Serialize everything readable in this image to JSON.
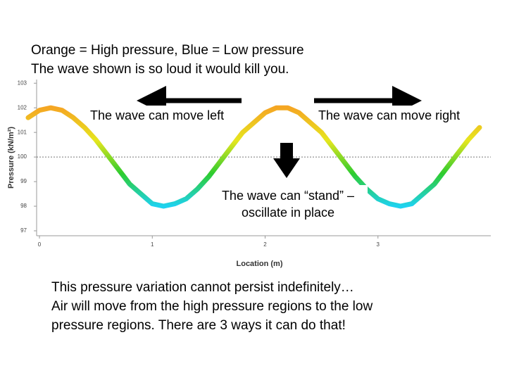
{
  "header": [
    "Orange = High pressure, Blue = Low pressure",
    "The wave shown is so loud it would kill you."
  ],
  "annotations": {
    "left": "The wave can move left",
    "right": "The wave can move right",
    "stand": [
      "The wave can “stand” –",
      "oscillate in place"
    ]
  },
  "footer": [
    "This pressure variation cannot persist indefinitely…",
    "Air will move from the high pressure regions to the low",
    "pressure regions. There are 3 ways it can do that!"
  ],
  "chart_data": {
    "type": "line",
    "x_label": "Location (m)",
    "y_label": "Pressure (kN/m²)",
    "x": [
      -0.1,
      0.0,
      0.1,
      0.2,
      0.3,
      0.4,
      0.5,
      0.6,
      0.7,
      0.8,
      0.9,
      1.0,
      1.1,
      1.2,
      1.3,
      1.4,
      1.5,
      1.6,
      1.7,
      1.8,
      1.9,
      2.0,
      2.1,
      2.2,
      2.3,
      2.4,
      2.5,
      2.6,
      2.7,
      2.8,
      2.9,
      3.0,
      3.1,
      3.2,
      3.3,
      3.4,
      3.5,
      3.6,
      3.7,
      3.8,
      3.9
    ],
    "series": [
      {
        "values": [
          101.6,
          101.9,
          102.0,
          101.9,
          101.6,
          101.2,
          100.7,
          100.1,
          99.5,
          98.9,
          98.5,
          98.1,
          98.0,
          98.1,
          98.3,
          98.7,
          99.2,
          99.8,
          100.4,
          101.0,
          101.4,
          101.8,
          102.0,
          102.0,
          101.8,
          101.4,
          101.0,
          100.4,
          99.8,
          99.2,
          98.7,
          98.3,
          98.1,
          98.0,
          98.1,
          98.5,
          98.9,
          99.5,
          100.1,
          100.7,
          101.2
        ],
        "gradient": [
          "#f5a623",
          "#e6e61e",
          "#2ecc2e",
          "#1ed2f0"
        ]
      }
    ],
    "xlim": [
      -0.1,
      4.0
    ],
    "ylim": [
      96.8,
      103.15
    ],
    "xticks": [
      0,
      1,
      2,
      3
    ],
    "yticks": [
      97,
      98,
      99,
      100,
      101,
      102,
      103
    ],
    "reference_line": 100,
    "grid": false
  }
}
